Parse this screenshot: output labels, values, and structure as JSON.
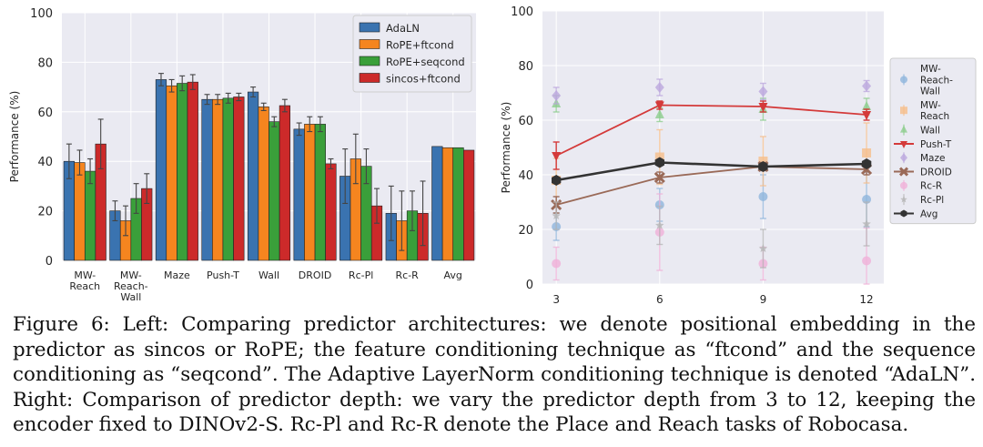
{
  "caption": "Figure 6: Left: Comparing predictor architectures: we denote positional embedding in the predictor as sincos or RoPE; the feature conditioning technique as “ftcond” and the sequence conditioning as “seqcond”. The Adaptive LayerNorm conditioning technique is denoted “AdaLN”. Right: Comparison of predictor depth: we vary the predictor depth from 3 to 12, keeping the encoder fixed to DINOv2-S. Rc-Pl and Rc-R denote the Place and Reach tasks of Robocasa.",
  "chart_data": [
    {
      "type": "bar",
      "ylabel": "Performance (%)",
      "ylim": [
        0,
        100
      ],
      "yticks": [
        0,
        20,
        40,
        60,
        80,
        100
      ],
      "grid": true,
      "legend_position": "top-right",
      "categories": [
        [
          "MW-",
          "Reach"
        ],
        [
          "MW-",
          "Reach-",
          "Wall"
        ],
        [
          "Maze"
        ],
        [
          "Push-T"
        ],
        [
          "Wall"
        ],
        [
          "DROID"
        ],
        [
          "Rc-Pl"
        ],
        [
          "Rc-R"
        ],
        [
          "Avg"
        ]
      ],
      "series": [
        {
          "name": "AdaLN",
          "color": "#3a73b0",
          "values": [
            40,
            20,
            73,
            65,
            68,
            53,
            34,
            19,
            46
          ],
          "errors": [
            7,
            4,
            2.5,
            2,
            2,
            2.5,
            11,
            11,
            null
          ]
        },
        {
          "name": "RoPE+ftcond",
          "color": "#f5851f",
          "values": [
            39.5,
            16,
            70.5,
            65,
            62,
            55,
            41,
            16,
            45.5
          ],
          "errors": [
            5,
            6,
            2.5,
            2,
            1.5,
            3,
            10,
            12,
            null
          ]
        },
        {
          "name": "RoPE+seqcond",
          "color": "#3a9f3a",
          "values": [
            36,
            25,
            71.5,
            65.5,
            56,
            55,
            38,
            20,
            45.5
          ],
          "errors": [
            5,
            6,
            3,
            2,
            2,
            3,
            7,
            8,
            null
          ]
        },
        {
          "name": "sincos+ftcond",
          "color": "#cc2a2a",
          "values": [
            47,
            29,
            72,
            66,
            62.5,
            39,
            22,
            19,
            44.5
          ],
          "errors": [
            10,
            6,
            3,
            1.5,
            2.5,
            2,
            7,
            13,
            null
          ]
        }
      ]
    },
    {
      "type": "line",
      "ylabel": "Performance (%)",
      "x": [
        3,
        6,
        9,
        12
      ],
      "ylim": [
        0,
        100
      ],
      "yticks": [
        0,
        20,
        40,
        60,
        80,
        100
      ],
      "grid": true,
      "legend_position": "right",
      "series": [
        {
          "name": "MW-Reach-Wall",
          "label_lines": [
            "MW-",
            "Reach-",
            "Wall"
          ],
          "color": "#8fb5dc",
          "marker": "circle",
          "line": false,
          "values": [
            21,
            29,
            32,
            31
          ],
          "errors": [
            5,
            6,
            8,
            10
          ]
        },
        {
          "name": "MW-Reach",
          "label_lines": [
            "MW-",
            "Reach"
          ],
          "color": "#f6be8a",
          "marker": "square",
          "line": false,
          "values": [
            38,
            46.5,
            45,
            48
          ],
          "errors": [
            8,
            10,
            9,
            11
          ]
        },
        {
          "name": "Wall",
          "label_lines": [
            "Wall"
          ],
          "color": "#8ccd8c",
          "marker": "triangle-up",
          "line": false,
          "values": [
            66,
            62,
            64,
            65
          ],
          "errors": [
            3,
            2.5,
            4,
            3
          ]
        },
        {
          "name": "Push-T",
          "label_lines": [
            "Push-T"
          ],
          "color": "#d43a3a",
          "marker": "triangle-down",
          "line": true,
          "values": [
            47,
            65.5,
            65,
            62
          ],
          "errors": [
            5,
            1.5,
            2,
            2
          ]
        },
        {
          "name": "Maze",
          "label_lines": [
            "Maze"
          ],
          "color": "#bca7dd",
          "marker": "diamond",
          "line": false,
          "values": [
            69,
            72,
            70.5,
            72.5
          ],
          "errors": [
            3,
            3,
            3,
            2
          ]
        },
        {
          "name": "DROID",
          "label_lines": [
            "DROID"
          ],
          "color": "#9a6a58",
          "marker": "x",
          "line": true,
          "values": [
            29,
            39,
            43,
            42
          ],
          "errors": [
            3,
            2,
            1.5,
            2
          ]
        },
        {
          "name": "Rc-R",
          "label_lines": [
            "Rc-R"
          ],
          "color": "#f0b0d8",
          "marker": "circle",
          "line": false,
          "values": [
            7.5,
            19,
            7.5,
            8.5
          ],
          "errors": [
            6,
            14,
            6,
            12
          ]
        },
        {
          "name": "Rc-Pl",
          "label_lines": [
            "Rc-Pl"
          ],
          "color": "#b5b5b5",
          "marker": "star",
          "line": false,
          "values": [
            25,
            21.5,
            13,
            22
          ],
          "errors": [
            5,
            7,
            7,
            8
          ]
        },
        {
          "name": "Avg",
          "label_lines": [
            "Avg"
          ],
          "color": "#333333",
          "marker": "hexagon",
          "line": true,
          "values": [
            38,
            44.5,
            43,
            44
          ],
          "errors": [
            null,
            null,
            null,
            null
          ]
        }
      ]
    }
  ]
}
